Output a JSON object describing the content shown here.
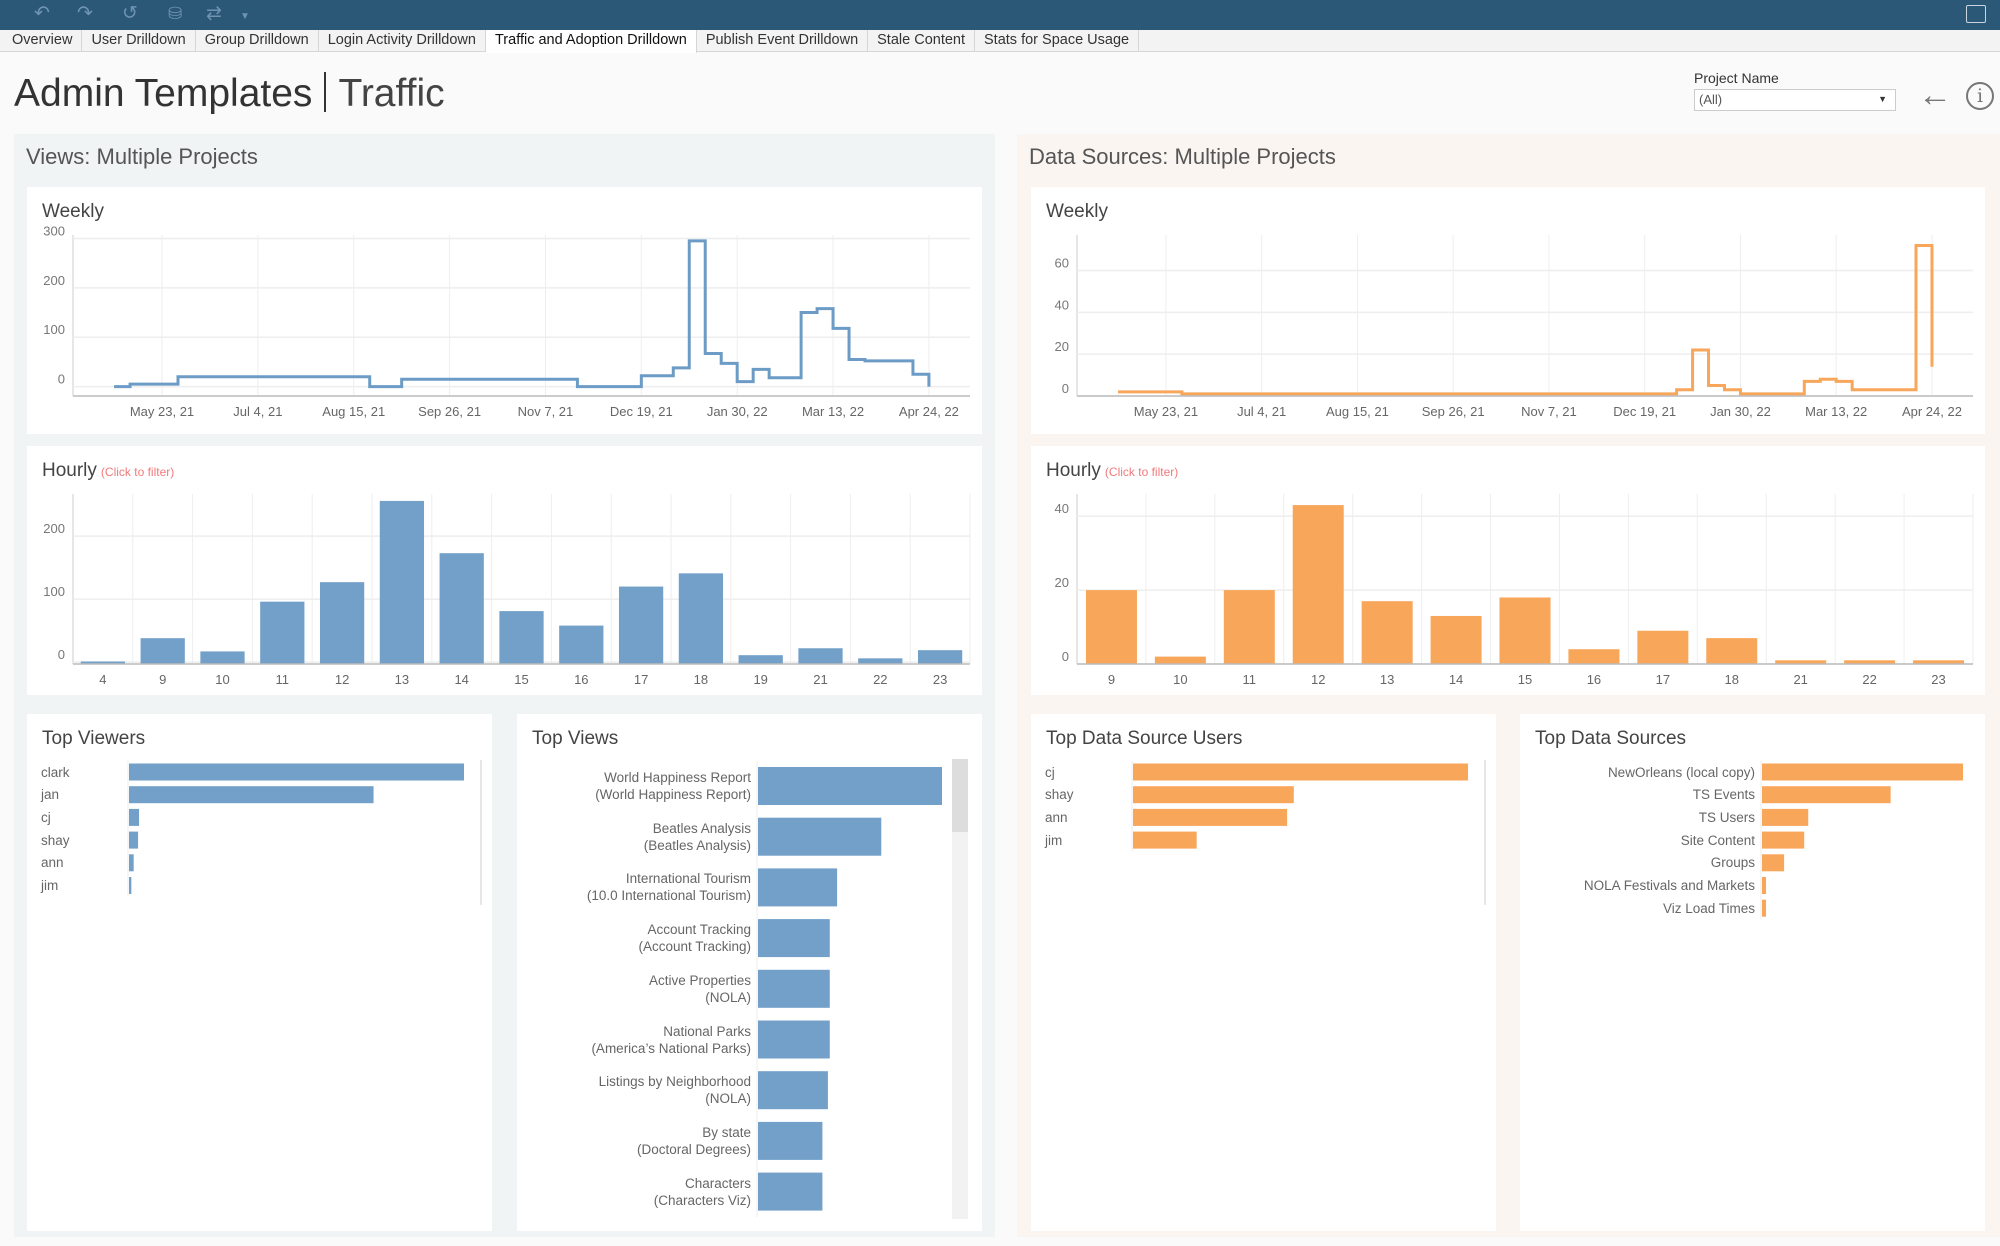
{
  "toolbar": {
    "icons": [
      "undo-icon",
      "redo-icon",
      "revert-icon",
      "datasource-icon",
      "share-icon",
      "fullscreen-icon"
    ]
  },
  "tabs": [
    "Overview",
    "User Drilldown",
    "Group Drilldown",
    "Login Activity Drilldown",
    "Traffic and Adoption Drilldown",
    "Publish Event Drilldown",
    "Stale Content",
    "Stats for Space Usage"
  ],
  "active_tab": "Traffic and Adoption Drilldown",
  "header": {
    "title": "Admin Templates",
    "subtitle": "Traffic"
  },
  "filter": {
    "label": "Project Name",
    "value": "(All)"
  },
  "colors": {
    "views": "#73a0c9",
    "views_line": "#6c9cc6",
    "datasources": "#f8a65a"
  },
  "views_panel": {
    "title": "Views: Multiple Projects"
  },
  "ds_panel": {
    "title": "Data Sources: Multiple Projects"
  },
  "hint": "(Click to filter)",
  "chart_data": [
    {
      "id": "views-weekly",
      "type": "line",
      "step": true,
      "title": "Weekly",
      "color": "#6c9cc6",
      "xlim": [
        "2021-04-14",
        "2022-05-12"
      ],
      "xticks": [
        [
          "2021-05-23",
          "May 23, 21"
        ],
        [
          "2021-07-04",
          "Jul 4, 21"
        ],
        [
          "2021-08-15",
          "Aug 15, 21"
        ],
        [
          "2021-09-26",
          "Sep 26, 21"
        ],
        [
          "2021-11-07",
          "Nov 7, 21"
        ],
        [
          "2021-12-19",
          "Dec 19, 21"
        ],
        [
          "2022-01-30",
          "Jan 30, 22"
        ],
        [
          "2022-03-13",
          "Mar 13, 22"
        ],
        [
          "2022-04-24",
          "Apr 24, 22"
        ]
      ],
      "ylim": [
        -19,
        307
      ],
      "yticks": [
        0,
        100,
        200,
        300
      ],
      "points": [
        [
          "2021-05-02",
          0
        ],
        [
          "2021-05-09",
          5
        ],
        [
          "2021-05-30",
          20
        ],
        [
          "2021-08-22",
          0
        ],
        [
          "2021-09-05",
          15
        ],
        [
          "2021-11-21",
          0
        ],
        [
          "2021-12-19",
          22
        ],
        [
          "2022-01-02",
          38
        ],
        [
          "2022-01-09",
          295
        ],
        [
          "2022-01-16",
          67
        ],
        [
          "2022-01-23",
          47
        ],
        [
          "2022-01-30",
          10
        ],
        [
          "2022-02-06",
          35
        ],
        [
          "2022-02-13",
          18
        ],
        [
          "2022-02-27",
          150
        ],
        [
          "2022-03-06",
          158
        ],
        [
          "2022-03-13",
          118
        ],
        [
          "2022-03-20",
          55
        ],
        [
          "2022-03-27",
          52
        ],
        [
          "2022-04-17",
          25
        ],
        [
          "2022-04-24",
          0
        ]
      ]
    },
    {
      "id": "views-hourly",
      "type": "bar",
      "title": "Hourly",
      "color": "#73a0c9",
      "ylim": [
        -3,
        267
      ],
      "yticks": [
        0,
        100,
        200
      ],
      "categories": [
        "4",
        "9",
        "10",
        "11",
        "12",
        "13",
        "14",
        "15",
        "16",
        "17",
        "18",
        "19",
        "21",
        "22",
        "23"
      ],
      "values": [
        1,
        38,
        17,
        96,
        127,
        256,
        173,
        81,
        58,
        120,
        141,
        11,
        22,
        6,
        19
      ]
    },
    {
      "id": "ds-weekly",
      "type": "line",
      "step": true,
      "title": "Weekly",
      "color": "#f8a65a",
      "xlim": [
        "2021-04-14",
        "2022-05-12"
      ],
      "xticks": [
        [
          "2021-05-23",
          "May 23, 21"
        ],
        [
          "2021-07-04",
          "Jul 4, 21"
        ],
        [
          "2021-08-15",
          "Aug 15, 21"
        ],
        [
          "2021-09-26",
          "Sep 26, 21"
        ],
        [
          "2021-11-07",
          "Nov 7, 21"
        ],
        [
          "2021-12-19",
          "Dec 19, 21"
        ],
        [
          "2022-01-30",
          "Jan 30, 22"
        ],
        [
          "2022-03-13",
          "Mar 13, 22"
        ],
        [
          "2022-04-24",
          "Apr 24, 22"
        ]
      ],
      "ylim": [
        0,
        77
      ],
      "yticks": [
        0,
        20,
        40,
        60
      ],
      "points": [
        [
          "2021-05-02",
          2
        ],
        [
          "2021-05-30",
          1
        ],
        [
          "2022-01-02",
          3
        ],
        [
          "2022-01-09",
          22
        ],
        [
          "2022-01-16",
          5
        ],
        [
          "2022-01-23",
          3
        ],
        [
          "2022-01-30",
          1
        ],
        [
          "2022-02-27",
          7
        ],
        [
          "2022-03-06",
          8
        ],
        [
          "2022-03-13",
          7
        ],
        [
          "2022-03-20",
          3
        ],
        [
          "2022-04-17",
          72
        ],
        [
          "2022-04-24",
          14
        ]
      ]
    },
    {
      "id": "ds-hourly",
      "type": "bar",
      "title": "Hourly",
      "color": "#f8a65a",
      "ylim": [
        0,
        46
      ],
      "yticks": [
        0,
        20,
        40
      ],
      "categories": [
        "9",
        "10",
        "11",
        "12",
        "13",
        "14",
        "15",
        "16",
        "17",
        "18",
        "21",
        "22",
        "23"
      ],
      "values": [
        20,
        2,
        20,
        43,
        17,
        13,
        18,
        4,
        9,
        7,
        1,
        1,
        1
      ]
    },
    {
      "id": "top-viewers",
      "type": "bar",
      "orientation": "horizontal",
      "title": "Top Viewers",
      "color": "#73a0c9",
      "categories": [
        "clark",
        "jan",
        "cj",
        "shay",
        "ann",
        "jim"
      ],
      "values": [
        100,
        73,
        3,
        2.7,
        1.4,
        0.7
      ]
    },
    {
      "id": "top-views",
      "type": "bar",
      "orientation": "horizontal",
      "title": "Top Views",
      "color": "#73a0c9",
      "categories": [
        [
          "World Happiness Report",
          "(World Happiness Report)"
        ],
        [
          "Beatles Analysis",
          "(Beatles Analysis)"
        ],
        [
          "International Tourism",
          "(10.0 International Tourism)"
        ],
        [
          "Account Tracking",
          "(Account Tracking)"
        ],
        [
          "Active Properties",
          "(NOLA)"
        ],
        [
          "National Parks",
          "(America’s National Parks)"
        ],
        [
          "Listings by Neighborhood",
          "(NOLA)"
        ],
        [
          "By state",
          "(Doctoral Degrees)"
        ],
        [
          "Characters",
          "(Characters Viz)"
        ]
      ],
      "values": [
        100,
        67,
        43,
        39,
        39,
        39,
        38,
        35,
        35
      ]
    },
    {
      "id": "top-ds-users",
      "type": "bar",
      "orientation": "horizontal",
      "title": "Top Data Source Users",
      "color": "#f8a65a",
      "categories": [
        "cj",
        "shay",
        "ann",
        "jim"
      ],
      "values": [
        100,
        48,
        46,
        19
      ]
    },
    {
      "id": "top-ds",
      "type": "bar",
      "orientation": "horizontal",
      "title": "Top Data Sources",
      "color": "#f8a65a",
      "categories": [
        "NewOrleans (local copy)",
        "TS Events",
        "TS Users",
        "Site Content",
        "Groups",
        "NOLA Festivals and Markets",
        "Viz Load Times"
      ],
      "values": [
        100,
        64,
        23,
        21,
        11,
        2,
        2
      ]
    }
  ]
}
